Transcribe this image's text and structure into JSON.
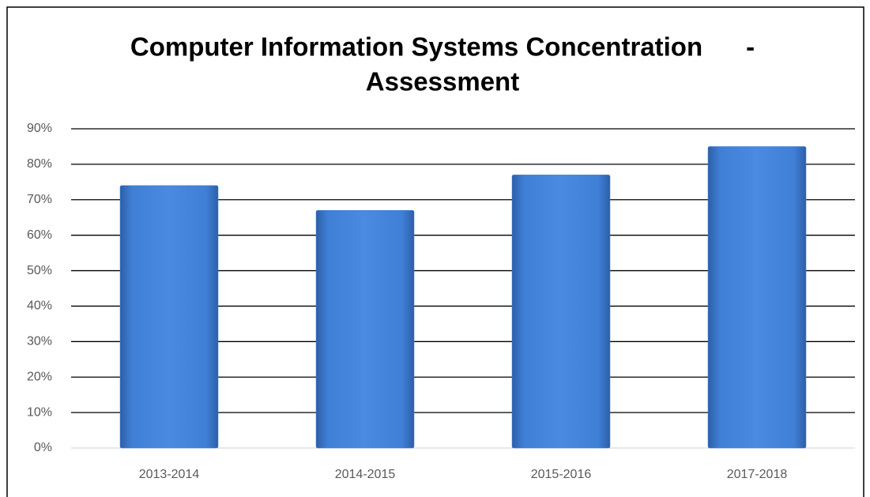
{
  "chart_data": {
    "type": "bar",
    "title": [
      "Computer Information Systems Concentration      -",
      "Assessment"
    ],
    "categories": [
      "2013-2014",
      "2014-2015",
      "2015-2016",
      "2017-2018"
    ],
    "values": [
      74,
      67,
      77,
      85
    ],
    "color": "#3f7fd6",
    "ylim": [
      0,
      90
    ],
    "yticks": [
      {
        "value": 0,
        "label": "0%"
      },
      {
        "value": 10,
        "label": "10%"
      },
      {
        "value": 20,
        "label": "20%"
      },
      {
        "value": 30,
        "label": "30%"
      },
      {
        "value": 40,
        "label": "40%"
      },
      {
        "value": 50,
        "label": "50%"
      },
      {
        "value": 60,
        "label": "60%"
      },
      {
        "value": 70,
        "label": "70%"
      },
      {
        "value": 80,
        "label": "80%"
      },
      {
        "value": 90,
        "label": "90%"
      }
    ],
    "grid": true
  }
}
